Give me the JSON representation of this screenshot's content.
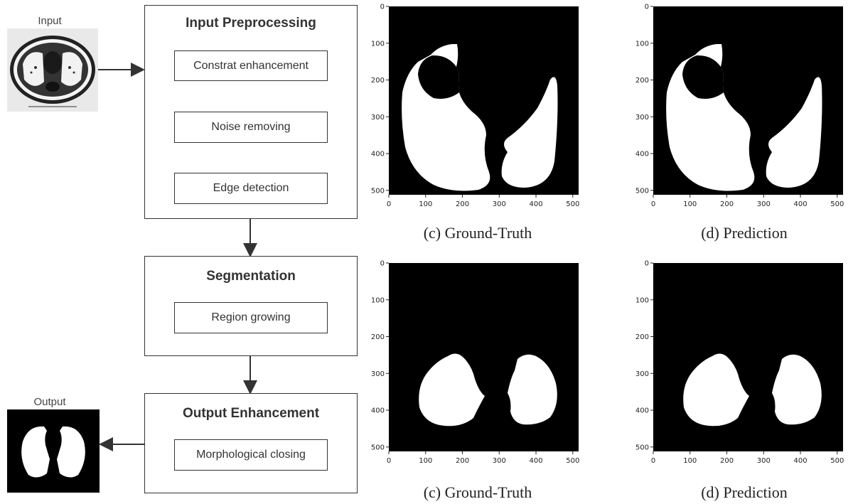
{
  "input_label": "Input",
  "output_label": "Output",
  "pipeline": {
    "preprocessing": {
      "title": "Input Preprocessing",
      "steps": [
        "Constrat enhancement",
        "Noise removing",
        "Edge detection"
      ]
    },
    "segmentation": {
      "title": "Segmentation",
      "steps": [
        "Region growing"
      ]
    },
    "enhancement": {
      "title": "Output Enhancement",
      "steps": [
        "Morphological closing"
      ]
    }
  },
  "panels": [
    {
      "caption": "(c) Ground-Truth"
    },
    {
      "caption": "(d) Prediction"
    },
    {
      "caption": "(c) Ground-Truth"
    },
    {
      "caption": "(d) Prediction"
    }
  ],
  "axis": {
    "y_ticks": [
      "0",
      "100",
      "200",
      "300",
      "400",
      "500"
    ],
    "x_ticks": [
      "0",
      "100",
      "200",
      "300",
      "400",
      "500"
    ]
  },
  "colors": {
    "mask_bg": "#000000",
    "mask_fg": "#ffffff",
    "line": "#333333"
  }
}
